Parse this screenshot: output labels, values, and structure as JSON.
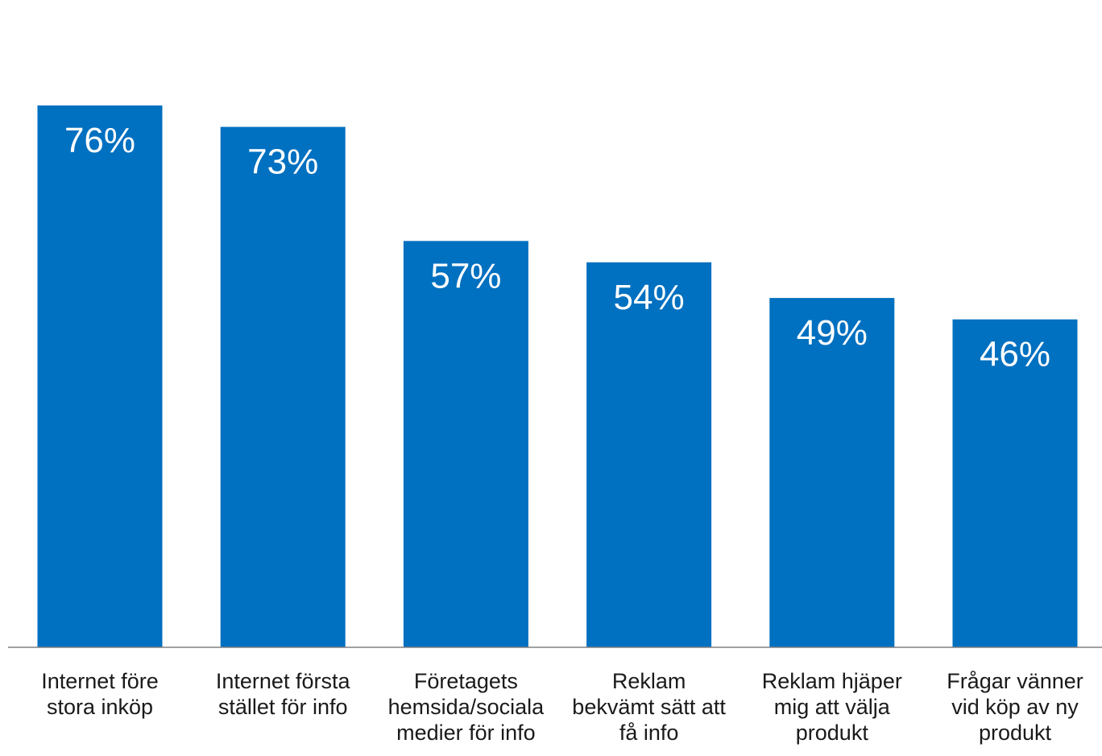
{
  "colors": {
    "bar": "#0070c0",
    "axis": "#808080",
    "value_text": "#ffffff",
    "label_text": "#1a1a1a"
  },
  "chart_data": {
    "type": "bar",
    "categories": [
      [
        "Internet före",
        "stora inköp"
      ],
      [
        "Internet första",
        "stället för info"
      ],
      [
        "Företagets",
        "hemsida/sociala",
        "medier för info"
      ],
      [
        "Reklam",
        "bekvämt sätt att",
        "få info"
      ],
      [
        "Reklam hjäper",
        "mig att välja",
        "produkt"
      ],
      [
        "Frågar vänner",
        "vid köp av ny",
        "produkt"
      ]
    ],
    "values": [
      76,
      73,
      57,
      54,
      49,
      46
    ],
    "data_labels": [
      "76%",
      "73%",
      "57%",
      "54%",
      "49%",
      "46%"
    ],
    "ylim": [
      0,
      76
    ],
    "grid": false,
    "legend": "none"
  }
}
